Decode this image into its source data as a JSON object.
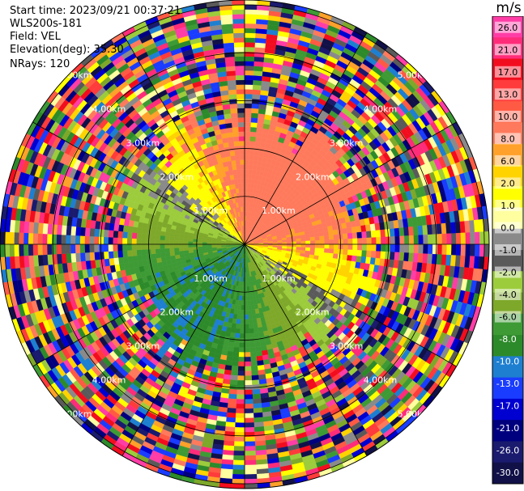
{
  "header": {
    "start_time": "Start time: 2023/09/21 00:37:21",
    "instrument": "WLS200s-181",
    "field": "Field: VEL",
    "elevation": "Elevation(deg): 35.30",
    "nrays": "NRays: 120"
  },
  "chart_data": {
    "type": "heatmap",
    "projection": "polar (PPI)",
    "rings": [
      {
        "range_km": 1.0,
        "label": "1.00km"
      },
      {
        "range_km": 2.0,
        "label": "2.00km"
      },
      {
        "range_km": 3.0,
        "label": "3.00km"
      },
      {
        "range_km": 4.0,
        "label": "4.00km"
      },
      {
        "range_km": 5.0,
        "label": "5.00km"
      }
    ],
    "max_range_km": 5.1,
    "n_rays": 120,
    "sector_lines_every_deg": 30,
    "colorbar": {
      "unit": "m/s",
      "ticks": [
        "26.0",
        "21.0",
        "17.0",
        "13.0",
        "10.0",
        "8.0",
        "6.0",
        "2.0",
        "1.0",
        "0.0",
        "-1.0",
        "-2.0",
        "-4.0",
        "-6.0",
        "-8.0",
        "-10.0",
        "-13.0",
        "-17.0",
        "-21.0",
        "-26.0",
        "-30.0"
      ],
      "colors": [
        "#ff3da6",
        "#ff2c7a",
        "#f20d1e",
        "#ff3b3b",
        "#ff5a43",
        "#ff7a5c",
        "#ffa12a",
        "#ffd300",
        "#ffff00",
        "#ffffa0",
        "#8a8a8a",
        "#5a5a5a",
        "#9ccc3c",
        "#7ea82a",
        "#3e9a35",
        "#2d8a2a",
        "#1e7fd0",
        "#1a3cff",
        "#0000d0",
        "#00007e",
        "#1a1a6e",
        "#111148"
      ]
    }
  }
}
